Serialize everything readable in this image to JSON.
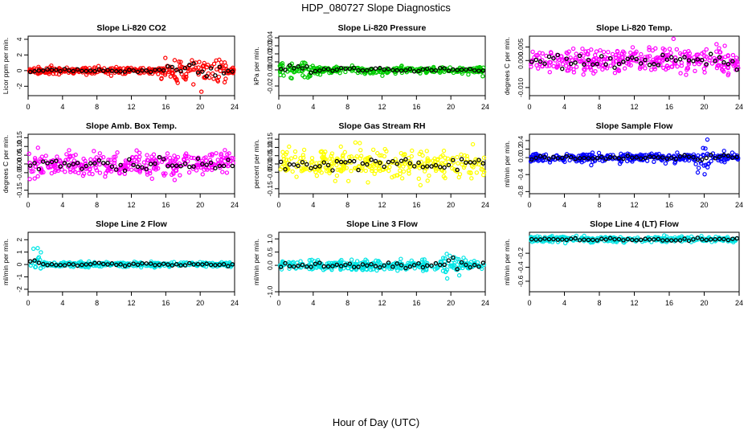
{
  "figure": {
    "title": "HDP_080727  Slope Diagnostics",
    "xlabel": "Hour of Day (UTC)"
  },
  "chart_data": [
    {
      "type": "scatter",
      "title": "Slope Li-820 CO2",
      "ylabel": "Licor ppm per min.",
      "color": "#ff0000",
      "xlim": [
        0,
        24
      ],
      "ylim": [
        -3.2,
        4.4
      ],
      "xticks": [
        "0",
        "4",
        "8",
        "12",
        "16",
        "20",
        "24"
      ],
      "yticks": [
        "-2",
        "0",
        "2",
        "4"
      ],
      "ytick_values": [
        -2,
        0,
        2,
        4
      ],
      "spread": 0.35,
      "burst": {
        "start": 15,
        "end": 23,
        "spread": 1.4
      }
    },
    {
      "type": "scatter",
      "title": "Slope Li-820 Pressure",
      "ylabel": "kPa per min.",
      "color": "#00cc00",
      "xlim": [
        0,
        24
      ],
      "ylim": [
        -0.032,
        0.042
      ],
      "xticks": [
        "0",
        "4",
        "8",
        "12",
        "16",
        "20",
        "24"
      ],
      "yticks": [
        "-0.02",
        "0.00",
        "0.01",
        "0.02",
        "0.03",
        "0.04"
      ],
      "ytick_values": [
        -0.02,
        0.0,
        0.01,
        0.02,
        0.03,
        0.04
      ],
      "spread": 0.004,
      "burst": {
        "start": 0,
        "end": 4,
        "spread": 0.009
      }
    },
    {
      "type": "scatter",
      "title": "Slope Li-820 Temp.",
      "ylabel": "degrees C per min.",
      "color": "#ff00ff",
      "xlim": [
        0,
        24
      ],
      "ylim": [
        -0.013,
        0.009
      ],
      "xticks": [
        "0",
        "4",
        "8",
        "12",
        "16",
        "20",
        "24"
      ],
      "yticks": [
        "-0.010",
        "0.000",
        "0.005"
      ],
      "ytick_values": [
        -0.01,
        0.0,
        0.005
      ],
      "spread": 0.0042,
      "burst": null
    },
    {
      "type": "scatter",
      "title": "Slope Amb. Box Temp.",
      "ylabel": "degrees C per min.",
      "color": "#ff00ff",
      "xlim": [
        0,
        24
      ],
      "ylim": [
        -0.17,
        0.17
      ],
      "xticks": [
        "0",
        "4",
        "8",
        "12",
        "16",
        "20",
        "24"
      ],
      "yticks": [
        "-0.15",
        "-0.05",
        "0.00",
        "0.05",
        "0.10",
        "0.15"
      ],
      "ytick_values": [
        -0.15,
        -0.05,
        0.0,
        0.05,
        0.1,
        0.15
      ],
      "spread": 0.065,
      "burst": null
    },
    {
      "type": "scatter",
      "title": "Slope Gas Stream RH",
      "ylabel": "percent per min.",
      "color": "#ffff00",
      "xlim": [
        0,
        24
      ],
      "ylim": [
        -0.18,
        0.18
      ],
      "xticks": [
        "0",
        "4",
        "8",
        "12",
        "16",
        "20",
        "24"
      ],
      "yticks": [
        "-0.15",
        "-0.05",
        "0.00",
        "0.05",
        "0.10",
        "0.15"
      ],
      "ytick_values": [
        -0.15,
        -0.05,
        0.0,
        0.05,
        0.1,
        0.15
      ],
      "spread": 0.07,
      "burst": null
    },
    {
      "type": "scatter",
      "title": "Slope Sample Flow",
      "ylabel": "ml/min per min.",
      "color": "#0000ff",
      "xlim": [
        0,
        24
      ],
      "ylim": [
        -0.85,
        0.55
      ],
      "xticks": [
        "0",
        "4",
        "8",
        "12",
        "16",
        "20",
        "24"
      ],
      "yticks": [
        "-0.8",
        "-0.4",
        "0.0",
        "0.2",
        "0.4"
      ],
      "ytick_values": [
        -0.8,
        -0.4,
        0.0,
        0.2,
        0.4
      ],
      "spread": 0.09,
      "burst": {
        "start": 19,
        "end": 21,
        "spread": 0.3
      }
    },
    {
      "type": "scatter",
      "title": "Slope Line 2 Flow",
      "ylabel": "ml/min per min.",
      "color": "#00e5e5",
      "xlim": [
        0,
        24
      ],
      "ylim": [
        -2.2,
        2.6
      ],
      "xticks": [
        "0",
        "4",
        "8",
        "12",
        "16",
        "20",
        "24"
      ],
      "yticks": [
        "-2",
        "-1",
        "0",
        "1",
        "2"
      ],
      "ytick_values": [
        -2,
        -1,
        0,
        1,
        2
      ],
      "spread": 0.18,
      "burst": {
        "start": 0,
        "end": 1.5,
        "spread": 1.2
      }
    },
    {
      "type": "scatter",
      "title": "Slope Line 3 Flow",
      "ylabel": "ml/min per min.",
      "color": "#00e5e5",
      "xlim": [
        0,
        24
      ],
      "ylim": [
        -1.0,
        1.25
      ],
      "xticks": [
        "0",
        "4",
        "8",
        "12",
        "16",
        "20",
        "24"
      ],
      "yticks": [
        "-1.0",
        "0.0",
        "0.5",
        "1.0"
      ],
      "ytick_values": [
        -1.0,
        0.0,
        0.5,
        1.0
      ],
      "spread": 0.17,
      "burst": {
        "start": 19,
        "end": 21,
        "spread": 0.5
      }
    },
    {
      "type": "scatter",
      "title": "Slope Line 4 (LT) Flow",
      "ylabel": "ml/min per min.",
      "color": "#00e5e5",
      "xlim": [
        0,
        24
      ],
      "ylim": [
        -0.75,
        0.1
      ],
      "xticks": [
        "0",
        "4",
        "8",
        "12",
        "16",
        "20",
        "24"
      ],
      "yticks": [
        "-0.6",
        "-0.4",
        "-0.2"
      ],
      "ytick_values": [
        -0.6,
        -0.4,
        -0.2
      ],
      "spread": 0.035,
      "burst": null
    }
  ]
}
